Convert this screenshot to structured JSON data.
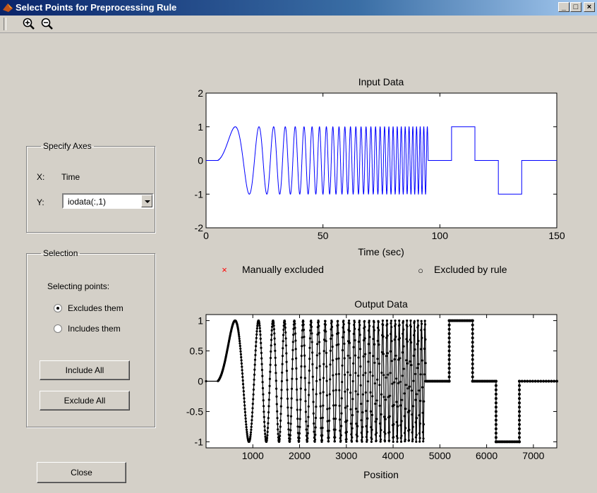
{
  "window": {
    "title": "Select Points for Preprocessing Rule",
    "minimize": "_",
    "maximize": "□",
    "close": "×"
  },
  "toolbar": {
    "zoom_in_icon": "zoom-in-icon",
    "zoom_out_icon": "zoom-out-icon"
  },
  "specify_axes": {
    "legend": "Specify Axes",
    "x_label": "X:",
    "x_value": "Time",
    "y_label": "Y:",
    "y_value": "iodata(:,1)"
  },
  "selection": {
    "legend": "Selection",
    "prompt": "Selecting points:",
    "options": [
      {
        "label": "Excludes them",
        "checked": true
      },
      {
        "label": "Includes them",
        "checked": false
      }
    ],
    "include_all": "Include All",
    "exclude_all": "Exclude All"
  },
  "close_label": "Close",
  "legend": {
    "manual": "Manually excluded",
    "rule": "Excluded by rule",
    "manual_marker": "×",
    "rule_marker": "○",
    "manual_color": "#ff0000"
  },
  "chart_data": [
    {
      "type": "line",
      "title": "Input Data",
      "xlabel": "Time (sec)",
      "ylabel": "",
      "xlim": [
        0,
        150
      ],
      "ylim": [
        -2,
        2
      ],
      "xticks": [
        "0",
        "50",
        "100",
        "150"
      ],
      "yticks": [
        "2",
        "1",
        "0",
        "-1",
        "-2"
      ],
      "series": [
        {
          "color": "#0000ff",
          "segments": [
            {
              "kind": "flat",
              "x": [
                0,
                5
              ],
              "y": 0
            },
            {
              "kind": "chirp",
              "x": [
                5,
                95
              ],
              "amplitude": 1
            },
            {
              "kind": "step",
              "x": [
                95,
                105,
                105,
                115,
                115,
                125,
                125,
                135,
                135,
                150
              ],
              "y": [
                0,
                0,
                1,
                1,
                0,
                0,
                -1,
                -1,
                0,
                0
              ]
            }
          ]
        }
      ]
    },
    {
      "type": "scatter",
      "title": "Output Data",
      "xlabel": "Position",
      "ylabel": "",
      "xlim": [
        0,
        7500
      ],
      "ylim": [
        -1.1,
        1.1
      ],
      "xticks": [
        "1000",
        "2000",
        "3000",
        "4000",
        "5000",
        "6000",
        "7000"
      ],
      "yticks": [
        "1",
        "0.5",
        "0",
        "-0.5",
        "-1"
      ],
      "series": [
        {
          "color": "#000000",
          "segments": [
            {
              "kind": "flat",
              "x": [
                0,
                250
              ],
              "y": 0
            },
            {
              "kind": "chirp",
              "x": [
                250,
                4700
              ],
              "amplitude": 1
            },
            {
              "kind": "step",
              "x": [
                4700,
                5200,
                5200,
                5700,
                5700,
                6200,
                6200,
                6700,
                6700,
                7500
              ],
              "y": [
                0,
                0,
                1,
                1,
                0,
                0,
                -1,
                -1,
                0,
                0
              ]
            }
          ]
        }
      ]
    }
  ]
}
